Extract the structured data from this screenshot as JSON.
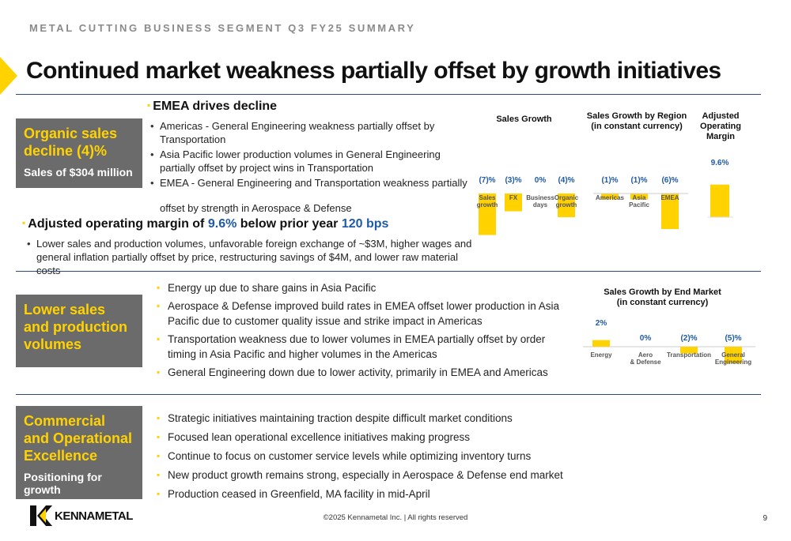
{
  "header": {
    "subtitle": "METAL CUTTING BUSINESS SEGMENT Q3 FY25 SUMMARY",
    "title": "Continued market weakness partially offset by growth initiatives"
  },
  "section1": {
    "box_title": "Organic sales decline (4)%",
    "box_sub": "Sales of $304 million",
    "emea_heading": "EMEA drives decline",
    "bullets": [
      "Americas - General Engineering weakness partially offset by Transportation",
      "Asia Pacific lower production volumes in General Engineering partially offset by project wins in Transportation",
      "EMEA - General Engineering and Transportation weakness partially",
      "offset by strength in Aerospace & Defense"
    ],
    "margin_heading_pre": "Adjusted operating margin of",
    "margin_value": "9.6%",
    "margin_heading_mid": "below prior year",
    "margin_bps": "120 bps",
    "margin_text": "Lower sales and production volumes, unfavorable foreign exchange of ~$3M, higher wages and general inflation partially offset by price, restructuring savings of $4M, and lower raw material costs"
  },
  "section2": {
    "box_title": "Lower sales and production volumes",
    "bullets": [
      "Energy up due to share gains in Asia Pacific",
      "Aerospace & Defense improved build rates in EMEA offset lower production in Asia Pacific due to customer quality issue and strike impact in Americas",
      "Transportation weakness due to lower volumes in EMEA partially offset by order timing in Asia Pacific and higher volumes in the Americas",
      "General Engineering down due to lower activity, primarily in EMEA and Americas"
    ]
  },
  "section3": {
    "box_title": "Commercial and Operational Excellence",
    "box_sub": "Positioning for growth",
    "bullets": [
      "Strategic initiatives maintaining traction despite difficult market conditions",
      "Focused lean operational excellence initiatives making progress",
      "Continue to focus on customer service levels while optimizing inventory turns",
      "New product growth remains strong, especially in Aerospace & Defense end market",
      "Production ceased in Greenfield, MA facility in mid-April"
    ]
  },
  "colors": {
    "accent": "#ffd200",
    "box_bg": "#6b6b6b",
    "blue": "#1f5aa6",
    "rule": "#2f4a7a"
  },
  "chart_data": [
    {
      "type": "bar",
      "title": "Sales Growth",
      "categories": [
        "Sales growth",
        "FX",
        "Business days",
        "Organic growth"
      ],
      "values": [
        -7,
        -3,
        0,
        -4
      ],
      "labels": [
        "(7)%",
        "(3)%",
        "0%",
        "(4)%"
      ]
    },
    {
      "type": "bar",
      "title": "Sales Growth by Region (in constant currency)",
      "categories": [
        "Americas",
        "Asia Pacific",
        "EMEA"
      ],
      "values": [
        -1,
        -1,
        -6
      ],
      "labels": [
        "(1)%",
        "(1)%",
        "(6)%"
      ]
    },
    {
      "type": "bar",
      "title": "Adjusted Operating Margin",
      "categories": [
        ""
      ],
      "values": [
        9.6
      ],
      "labels": [
        "9.6%"
      ]
    },
    {
      "type": "bar",
      "title": "Sales Growth by End Market (in constant currency)",
      "categories": [
        "Energy",
        "Aero & Defense",
        "Transportation",
        "General Engineering"
      ],
      "values": [
        2,
        0,
        -2,
        -5
      ],
      "labels": [
        "2%",
        "0%",
        "(2)%",
        "(5)%"
      ]
    }
  ],
  "footer": {
    "copyright": "©2025 Kennametal Inc.  |  All rights reserved",
    "page": "9",
    "logo_text": "KENNAMETAL"
  }
}
